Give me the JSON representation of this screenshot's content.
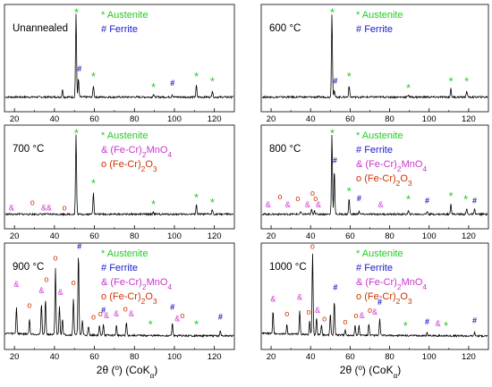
{
  "chart_data": [
    {
      "type": "line",
      "label": "Unannealed",
      "x_ticks": [
        20,
        40,
        60,
        80,
        100,
        120
      ],
      "xlim": [
        15,
        130
      ],
      "legend": [
        {
          "symbol": "*",
          "text": "Austenite",
          "color": "#22cc22"
        },
        {
          "symbol": "#",
          "text": "Ferrite",
          "color": "#1a1acc"
        }
      ],
      "peaks": [
        {
          "x": 44.0,
          "h": 0.09
        },
        {
          "x": 50.8,
          "h": 1.0
        },
        {
          "x": 52.0,
          "h": 0.22
        },
        {
          "x": 59.5,
          "h": 0.14
        },
        {
          "x": 89.5,
          "h": 0.035
        },
        {
          "x": 98.9,
          "h": 0.03
        },
        {
          "x": 111.0,
          "h": 0.14
        },
        {
          "x": 119.0,
          "h": 0.08
        }
      ],
      "markers": [
        {
          "x": 51.0,
          "h": 1.05,
          "symbol": "*",
          "phase": "Austenite"
        },
        {
          "x": 52.5,
          "h": 0.32,
          "symbol": "#",
          "phase": "Ferrite"
        },
        {
          "x": 59.5,
          "h": 0.28,
          "symbol": "*",
          "phase": "Austenite"
        },
        {
          "x": 89.5,
          "h": 0.15,
          "symbol": "*",
          "phase": "Austenite"
        },
        {
          "x": 99.0,
          "h": 0.15,
          "symbol": "#",
          "phase": "Ferrite"
        },
        {
          "x": 111.0,
          "h": 0.28,
          "symbol": "*",
          "phase": "Austenite"
        },
        {
          "x": 119.0,
          "h": 0.22,
          "symbol": "*",
          "phase": "Austenite"
        }
      ]
    },
    {
      "type": "line",
      "label": "600 °C",
      "x_ticks": [
        20,
        40,
        60,
        80,
        100,
        120
      ],
      "xlim": [
        15,
        130
      ],
      "legend": [
        {
          "symbol": "*",
          "text": "Austenite",
          "color": "#22cc22"
        },
        {
          "symbol": "#",
          "text": "Ferrite",
          "color": "#1a1acc"
        }
      ],
      "peaks": [
        {
          "x": 50.8,
          "h": 1.0
        },
        {
          "x": 52.0,
          "h": 0.08
        },
        {
          "x": 59.5,
          "h": 0.14
        },
        {
          "x": 89.5,
          "h": 0.03
        },
        {
          "x": 111.0,
          "h": 0.1
        },
        {
          "x": 119.0,
          "h": 0.08
        }
      ],
      "markers": [
        {
          "x": 51.0,
          "h": 1.05,
          "symbol": "*",
          "phase": "Austenite"
        },
        {
          "x": 52.5,
          "h": 0.18,
          "symbol": "#",
          "phase": "Ferrite"
        },
        {
          "x": 59.5,
          "h": 0.28,
          "symbol": "*",
          "phase": "Austenite"
        },
        {
          "x": 89.5,
          "h": 0.14,
          "symbol": "*",
          "phase": "Austenite"
        },
        {
          "x": 111.0,
          "h": 0.22,
          "symbol": "*",
          "phase": "Austenite"
        },
        {
          "x": 119.0,
          "h": 0.22,
          "symbol": "*",
          "phase": "Austenite"
        }
      ]
    },
    {
      "type": "line",
      "label": "700 °C",
      "x_ticks": [
        20,
        40,
        60,
        80,
        100,
        120
      ],
      "xlim": [
        15,
        130
      ],
      "legend": [
        {
          "symbol": "*",
          "text": "Austenite",
          "color": "#22cc22"
        },
        {
          "symbol": "&",
          "text": "(Fe-Cr)2MnO4",
          "color": "#cc33cc"
        },
        {
          "symbol": "o",
          "text": "(Fe-Cr)2O3",
          "color": "#cc3300"
        }
      ],
      "peaks": [
        {
          "x": 50.8,
          "h": 1.0
        },
        {
          "x": 59.5,
          "h": 0.28
        },
        {
          "x": 89.5,
          "h": 0.03
        },
        {
          "x": 111.0,
          "h": 0.12
        },
        {
          "x": 119.0,
          "h": 0.06
        }
      ],
      "markers": [
        {
          "x": 51.0,
          "h": 1.05,
          "symbol": "*",
          "phase": "Austenite"
        },
        {
          "x": 59.5,
          "h": 0.42,
          "symbol": "*",
          "phase": "Austenite"
        },
        {
          "x": 89.5,
          "h": 0.16,
          "symbol": "*",
          "phase": "Austenite"
        },
        {
          "x": 111.0,
          "h": 0.24,
          "symbol": "*",
          "phase": "Austenite"
        },
        {
          "x": 119.0,
          "h": 0.18,
          "symbol": "*",
          "phase": "Austenite"
        },
        {
          "x": 18.5,
          "h": 0.06,
          "symbol": "&",
          "phase": "(Fe-Cr)2MnO4"
        },
        {
          "x": 29.0,
          "h": 0.13,
          "symbol": "o",
          "phase": "(Fe-Cr)2O3"
        },
        {
          "x": 36.0,
          "h": 0.06,
          "symbol": "&&",
          "phase": "(Fe-Cr)2MnO4"
        },
        {
          "x": 45.0,
          "h": 0.06,
          "symbol": "o",
          "phase": "(Fe-Cr)2O3"
        }
      ]
    },
    {
      "type": "line",
      "label": "800 °C",
      "x_ticks": [
        20,
        40,
        60,
        80,
        100,
        120
      ],
      "xlim": [
        15,
        130
      ],
      "legend": [
        {
          "symbol": "*",
          "text": "Austenite",
          "color": "#22cc22"
        },
        {
          "symbol": "#",
          "text": "Ferrite",
          "color": "#1a1acc"
        },
        {
          "symbol": "&",
          "text": "(Fe-Cr)2MnO4",
          "color": "#cc33cc"
        },
        {
          "symbol": "o",
          "text": "(Fe-Cr)2O3",
          "color": "#cc3300"
        }
      ],
      "peaks": [
        {
          "x": 35.0,
          "h": 0.03
        },
        {
          "x": 40.5,
          "h": 0.06
        },
        {
          "x": 42.0,
          "h": 0.05
        },
        {
          "x": 50.8,
          "h": 1.0
        },
        {
          "x": 52.0,
          "h": 0.56
        },
        {
          "x": 59.5,
          "h": 0.2
        },
        {
          "x": 64.5,
          "h": 0.04
        },
        {
          "x": 89.5,
          "h": 0.04
        },
        {
          "x": 99.0,
          "h": 0.04
        },
        {
          "x": 111.0,
          "h": 0.14
        },
        {
          "x": 119.0,
          "h": 0.07
        },
        {
          "x": 123.0,
          "h": 0.06
        }
      ],
      "markers": [
        {
          "x": 51.0,
          "h": 1.05,
          "symbol": "*",
          "phase": "Austenite"
        },
        {
          "x": 52.3,
          "h": 0.66,
          "symbol": "#",
          "phase": "Ferrite"
        },
        {
          "x": 59.5,
          "h": 0.32,
          "symbol": "*",
          "phase": "Austenite"
        },
        {
          "x": 64.5,
          "h": 0.18,
          "symbol": "#",
          "phase": "Ferrite"
        },
        {
          "x": 89.5,
          "h": 0.22,
          "symbol": "*",
          "phase": "Austenite"
        },
        {
          "x": 99.0,
          "h": 0.15,
          "symbol": "#",
          "phase": "Ferrite"
        },
        {
          "x": 111.0,
          "h": 0.26,
          "symbol": "*",
          "phase": "Austenite"
        },
        {
          "x": 118.5,
          "h": 0.22,
          "symbol": "*",
          "phase": "Austenite"
        },
        {
          "x": 123.0,
          "h": 0.15,
          "symbol": "#",
          "phase": "Ferrite"
        },
        {
          "x": 18.5,
          "h": 0.1,
          "symbol": "&",
          "phase": "(Fe-Cr)2MnO4"
        },
        {
          "x": 24.5,
          "h": 0.2,
          "symbol": "o",
          "phase": "(Fe-Cr)2O3"
        },
        {
          "x": 28.5,
          "h": 0.1,
          "symbol": "&",
          "phase": "(Fe-Cr)2MnO4"
        },
        {
          "x": 33.5,
          "h": 0.18,
          "symbol": "o",
          "phase": "(Fe-Cr)2O3"
        },
        {
          "x": 38.5,
          "h": 0.1,
          "symbol": "&",
          "phase": "(Fe-Cr)2MnO4"
        },
        {
          "x": 41.0,
          "h": 0.25,
          "symbol": "o",
          "phase": "(Fe-Cr)2O3"
        },
        {
          "x": 42.5,
          "h": 0.18,
          "symbol": "o",
          "phase": "(Fe-Cr)2O3"
        },
        {
          "x": 44.0,
          "h": 0.1,
          "symbol": "&",
          "phase": "(Fe-Cr)2MnO4"
        },
        {
          "x": 75.5,
          "h": 0.1,
          "symbol": "&",
          "phase": "(Fe-Cr)2MnO4"
        }
      ]
    },
    {
      "type": "line",
      "label": "900 °C",
      "x_ticks": [
        20,
        40,
        60,
        80,
        100,
        120
      ],
      "xlim": [
        15,
        130
      ],
      "legend": [
        {
          "symbol": "*",
          "text": "Austenite",
          "color": "#22cc22"
        },
        {
          "symbol": "#",
          "text": "Ferrite",
          "color": "#1a1acc"
        },
        {
          "symbol": "&",
          "text": "(Fe-Cr)2MnO4",
          "color": "#cc33cc"
        },
        {
          "symbol": "o",
          "text": "(Fe-Cr)2O3",
          "color": "#cc3300"
        }
      ],
      "peaks": [
        {
          "x": 21.0,
          "h": 0.32
        },
        {
          "x": 27.5,
          "h": 0.18
        },
        {
          "x": 33.5,
          "h": 0.38
        },
        {
          "x": 35.5,
          "h": 0.42
        },
        {
          "x": 40.5,
          "h": 0.8
        },
        {
          "x": 42.5,
          "h": 0.35
        },
        {
          "x": 44.0,
          "h": 0.2
        },
        {
          "x": 49.5,
          "h": 0.45
        },
        {
          "x": 52.0,
          "h": 1.0
        },
        {
          "x": 54.0,
          "h": 0.18
        },
        {
          "x": 57.0,
          "h": 0.1
        },
        {
          "x": 62.5,
          "h": 0.12
        },
        {
          "x": 64.5,
          "h": 0.14
        },
        {
          "x": 71.0,
          "h": 0.12
        },
        {
          "x": 76.0,
          "h": 0.16
        },
        {
          "x": 99.0,
          "h": 0.15
        },
        {
          "x": 123.0,
          "h": 0.06
        }
      ],
      "markers": [
        {
          "x": 52.5,
          "h": 1.06,
          "symbol": "#",
          "phase": "Ferrite"
        },
        {
          "x": 64.5,
          "h": 0.28,
          "symbol": "#",
          "phase": "Ferrite"
        },
        {
          "x": 99.0,
          "h": 0.32,
          "symbol": "#",
          "phase": "Ferrite"
        },
        {
          "x": 123.0,
          "h": 0.2,
          "symbol": "#",
          "phase": "Ferrite"
        },
        {
          "x": 88.0,
          "h": 0.16,
          "symbol": "*",
          "phase": "Austenite"
        },
        {
          "x": 111.0,
          "h": 0.16,
          "symbol": "*",
          "phase": "Austenite"
        },
        {
          "x": 21.0,
          "h": 0.6,
          "symbol": "&",
          "phase": "(Fe-Cr)2MnO4"
        },
        {
          "x": 27.5,
          "h": 0.34,
          "symbol": "o",
          "phase": "(Fe-Cr)2O3"
        },
        {
          "x": 33.5,
          "h": 0.52,
          "symbol": "&",
          "phase": "(Fe-Cr)2MnO4"
        },
        {
          "x": 36.0,
          "h": 0.66,
          "symbol": "o",
          "phase": "(Fe-Cr)2O3"
        },
        {
          "x": 40.5,
          "h": 0.92,
          "symbol": "o",
          "phase": "(Fe-Cr)2O3"
        },
        {
          "x": 43.0,
          "h": 0.5,
          "symbol": "&",
          "phase": "(Fe-Cr)2MnO4"
        },
        {
          "x": 49.5,
          "h": 0.62,
          "symbol": "o",
          "phase": "(Fe-Cr)2O3"
        },
        {
          "x": 59.5,
          "h": 0.2,
          "symbol": "o",
          "phase": "(Fe-Cr)2O3"
        },
        {
          "x": 63.0,
          "h": 0.24,
          "symbol": "o",
          "phase": "(Fe-Cr)2O3"
        },
        {
          "x": 66.0,
          "h": 0.22,
          "symbol": "&",
          "phase": "(Fe-Cr)2MnO4"
        },
        {
          "x": 71.0,
          "h": 0.24,
          "symbol": "&",
          "phase": "(Fe-Cr)2MnO4"
        },
        {
          "x": 75.5,
          "h": 0.3,
          "symbol": "o",
          "phase": "(Fe-Cr)2O3"
        },
        {
          "x": 78.5,
          "h": 0.24,
          "symbol": "&",
          "phase": "(Fe-Cr)2MnO4"
        },
        {
          "x": 101.5,
          "h": 0.18,
          "symbol": "&",
          "phase": "(Fe-Cr)2MnO4"
        },
        {
          "x": 104.0,
          "h": 0.22,
          "symbol": "o",
          "phase": "(Fe-Cr)2O3"
        }
      ]
    },
    {
      "type": "line",
      "label": "1000 °C",
      "x_ticks": [
        20,
        40,
        60,
        80,
        100,
        120
      ],
      "xlim": [
        15,
        130
      ],
      "legend": [
        {
          "symbol": "*",
          "text": "Austenite",
          "color": "#22cc22"
        },
        {
          "symbol": "#",
          "text": "Ferrite",
          "color": "#1a1acc"
        },
        {
          "symbol": "&",
          "text": "(Fe-Cr)2MnO4",
          "color": "#cc33cc"
        },
        {
          "symbol": "o",
          "text": "(Fe-Cr)2O3",
          "color": "#cc3300"
        }
      ],
      "peaks": [
        {
          "x": 21.0,
          "h": 0.28
        },
        {
          "x": 28.0,
          "h": 0.12
        },
        {
          "x": 34.5,
          "h": 0.3
        },
        {
          "x": 39.5,
          "h": 0.16
        },
        {
          "x": 41.0,
          "h": 1.0
        },
        {
          "x": 43.0,
          "h": 0.2
        },
        {
          "x": 45.5,
          "h": 0.12
        },
        {
          "x": 50.0,
          "h": 0.25
        },
        {
          "x": 52.0,
          "h": 0.42
        },
        {
          "x": 57.5,
          "h": 0.06
        },
        {
          "x": 62.5,
          "h": 0.12
        },
        {
          "x": 64.5,
          "h": 0.12
        },
        {
          "x": 69.5,
          "h": 0.14
        },
        {
          "x": 75.0,
          "h": 0.2
        },
        {
          "x": 99.0,
          "h": 0.04
        },
        {
          "x": 123.0,
          "h": 0.04
        }
      ],
      "markers": [
        {
          "x": 52.5,
          "h": 0.56,
          "symbol": "#",
          "phase": "Ferrite"
        },
        {
          "x": 75.0,
          "h": 0.38,
          "symbol": "#",
          "phase": "Ferrite"
        },
        {
          "x": 99.0,
          "h": 0.14,
          "symbol": "#",
          "phase": "Ferrite"
        },
        {
          "x": 123.0,
          "h": 0.16,
          "symbol": "#",
          "phase": "Ferrite"
        },
        {
          "x": 88.0,
          "h": 0.14,
          "symbol": "*",
          "phase": "Austenite"
        },
        {
          "x": 108.5,
          "h": 0.14,
          "symbol": "*",
          "phase": "Austenite"
        },
        {
          "x": 21.0,
          "h": 0.42,
          "symbol": "&",
          "phase": "(Fe-Cr)2MnO4"
        },
        {
          "x": 28.0,
          "h": 0.24,
          "symbol": "o",
          "phase": "(Fe-Cr)2O3"
        },
        {
          "x": 34.5,
          "h": 0.44,
          "symbol": "&",
          "phase": "(Fe-Cr)2MnO4"
        },
        {
          "x": 39.0,
          "h": 0.26,
          "symbol": "o",
          "phase": "(Fe-Cr)2O3"
        },
        {
          "x": 41.0,
          "h": 1.06,
          "symbol": "o",
          "phase": "(Fe-Cr)2O3"
        },
        {
          "x": 43.5,
          "h": 0.28,
          "symbol": "&",
          "phase": "(Fe-Cr)2MnO4"
        },
        {
          "x": 47.0,
          "h": 0.18,
          "symbol": "o",
          "phase": "(Fe-Cr)2O3"
        },
        {
          "x": 57.5,
          "h": 0.14,
          "symbol": "o",
          "phase": "(Fe-Cr)2O3"
        },
        {
          "x": 63.0,
          "h": 0.22,
          "symbol": "o",
          "phase": "(Fe-Cr)2O3"
        },
        {
          "x": 66.0,
          "h": 0.22,
          "symbol": "&",
          "phase": "(Fe-Cr)2MnO4"
        },
        {
          "x": 70.0,
          "h": 0.28,
          "symbol": "o",
          "phase": "(Fe-Cr)2O3"
        },
        {
          "x": 72.5,
          "h": 0.26,
          "symbol": "&",
          "phase": "(Fe-Cr)2MnO4"
        },
        {
          "x": 104.5,
          "h": 0.12,
          "symbol": "&",
          "phase": "(Fe-Cr)2MnO4"
        }
      ]
    }
  ],
  "xlabel": {
    "prefix": "2θ (",
    "degree": "o",
    "mid": ") (CoK",
    "sub": "α",
    "end": ")"
  },
  "colors": {
    "austenite": "#22cc22",
    "ferrite": "#1a1acc",
    "spinel": "#cc33cc",
    "oxide": "#cc3300",
    "line": "#000000"
  }
}
